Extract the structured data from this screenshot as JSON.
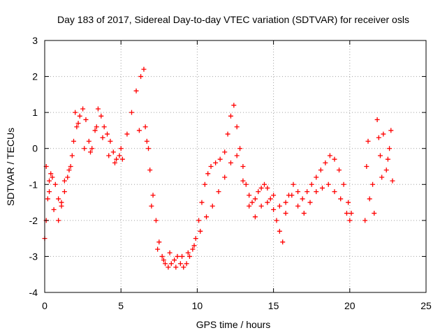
{
  "chart_data": {
    "type": "scatter",
    "title": "Day 183 of 2017, Sidereal Day-to-day VTEC variation (SDTVAR) for receiver osls",
    "xlabel": "GPS time / hours",
    "ylabel": "SDTVAR / TECUs",
    "xlim": [
      0,
      25
    ],
    "ylim": [
      -4,
      3
    ],
    "xticks": [
      0,
      5,
      10,
      15,
      20,
      25
    ],
    "yticks": [
      -4,
      -3,
      -2,
      -1,
      0,
      1,
      2,
      3
    ],
    "grid": true,
    "marker": "+",
    "color": "#ff0000",
    "series": [
      {
        "name": "trace-main",
        "points": [
          [
            0.0,
            -2.5
          ],
          [
            0.1,
            -2.0
          ],
          [
            0.2,
            -1.4
          ],
          [
            0.3,
            -0.9
          ],
          [
            0.4,
            -0.7
          ],
          [
            0.5,
            -0.8
          ],
          [
            0.7,
            -1.0
          ],
          [
            0.9,
            -1.4
          ],
          [
            1.1,
            -1.6
          ],
          [
            1.3,
            -1.2
          ],
          [
            1.5,
            -0.8
          ],
          [
            1.7,
            -0.5
          ],
          [
            1.9,
            0.2
          ],
          [
            2.1,
            0.6
          ],
          [
            2.3,
            0.9
          ],
          [
            2.5,
            1.1
          ],
          [
            2.7,
            0.8
          ],
          [
            2.9,
            0.2
          ],
          [
            3.1,
            0.0
          ],
          [
            3.3,
            0.5
          ],
          [
            3.5,
            1.1
          ],
          [
            3.7,
            0.9
          ],
          [
            3.9,
            0.6
          ],
          [
            4.1,
            0.4
          ],
          [
            4.3,
            0.2
          ],
          [
            4.5,
            -0.1
          ],
          [
            4.7,
            -0.3
          ],
          [
            4.9,
            -0.2
          ],
          [
            5.1,
            -0.3
          ],
          [
            5.4,
            0.4
          ],
          [
            5.7,
            1.0
          ],
          [
            6.0,
            1.6
          ],
          [
            6.3,
            2.0
          ],
          [
            6.5,
            2.2
          ],
          [
            6.6,
            0.6
          ],
          [
            6.8,
            0.0
          ],
          [
            6.9,
            -0.6
          ],
          [
            7.1,
            -1.3
          ],
          [
            7.3,
            -2.0
          ],
          [
            7.5,
            -2.6
          ],
          [
            7.7,
            -3.0
          ],
          [
            7.9,
            -3.2
          ],
          [
            8.1,
            -3.3
          ],
          [
            8.3,
            -3.2
          ],
          [
            8.5,
            -3.1
          ],
          [
            8.7,
            -3.0
          ],
          [
            8.9,
            -3.2
          ],
          [
            9.1,
            -3.3
          ],
          [
            9.3,
            -3.2
          ],
          [
            9.5,
            -3.0
          ],
          [
            9.7,
            -2.8
          ],
          [
            9.9,
            -2.5
          ],
          [
            10.1,
            -2.0
          ],
          [
            10.3,
            -1.5
          ],
          [
            10.5,
            -1.0
          ],
          [
            10.7,
            -0.7
          ],
          [
            10.9,
            -0.5
          ],
          [
            11.2,
            -0.4
          ],
          [
            11.5,
            -0.3
          ],
          [
            11.8,
            -0.1
          ],
          [
            12.0,
            0.4
          ],
          [
            12.2,
            0.9
          ],
          [
            12.4,
            1.2
          ],
          [
            12.6,
            0.6
          ],
          [
            12.8,
            0.0
          ],
          [
            13.0,
            -0.5
          ],
          [
            13.2,
            -1.0
          ],
          [
            13.4,
            -1.3
          ],
          [
            13.6,
            -1.5
          ],
          [
            13.8,
            -1.4
          ],
          [
            14.0,
            -1.2
          ],
          [
            14.2,
            -1.1
          ],
          [
            14.4,
            -1.0
          ],
          [
            14.6,
            -1.1
          ],
          [
            14.8,
            -1.4
          ],
          [
            15.0,
            -1.7
          ],
          [
            15.2,
            -2.0
          ],
          [
            15.4,
            -2.3
          ],
          [
            15.6,
            -2.6
          ],
          [
            15.8,
            -1.8
          ],
          [
            16.0,
            -1.3
          ],
          [
            16.3,
            -1.0
          ],
          [
            16.6,
            -1.2
          ],
          [
            16.9,
            -1.4
          ],
          [
            17.2,
            -1.2
          ],
          [
            17.5,
            -1.0
          ],
          [
            17.8,
            -0.8
          ],
          [
            18.1,
            -0.6
          ],
          [
            18.4,
            -0.4
          ],
          [
            18.7,
            -0.2
          ],
          [
            19.0,
            -0.3
          ],
          [
            19.3,
            -0.6
          ],
          [
            19.6,
            -1.0
          ],
          [
            19.9,
            -1.5
          ],
          [
            20.1,
            -1.8
          ],
          [
            21.0,
            -2.0
          ],
          [
            21.1,
            -0.5
          ],
          [
            21.2,
            0.2
          ],
          [
            21.5,
            -1.0
          ],
          [
            21.6,
            -1.8
          ],
          [
            21.8,
            0.8
          ],
          [
            22.0,
            -0.2
          ],
          [
            22.2,
            0.4
          ],
          [
            22.4,
            -0.6
          ],
          [
            22.6,
            0.0
          ],
          [
            22.8,
            -0.9
          ]
        ]
      },
      {
        "name": "trace-secondary",
        "points": [
          [
            0.1,
            -0.5
          ],
          [
            0.3,
            -1.2
          ],
          [
            0.6,
            -1.7
          ],
          [
            0.9,
            -2.0
          ],
          [
            1.1,
            -1.5
          ],
          [
            1.3,
            -0.9
          ],
          [
            1.6,
            -0.6
          ],
          [
            1.8,
            -0.2
          ],
          [
            2.0,
            1.0
          ],
          [
            2.2,
            0.7
          ],
          [
            2.6,
            0.0
          ],
          [
            3.0,
            -0.1
          ],
          [
            3.4,
            0.6
          ],
          [
            3.8,
            0.3
          ],
          [
            4.2,
            -0.2
          ],
          [
            4.6,
            -0.4
          ],
          [
            5.0,
            0.0
          ],
          [
            6.2,
            0.5
          ],
          [
            6.7,
            0.2
          ],
          [
            7.0,
            -1.6
          ],
          [
            7.4,
            -2.8
          ],
          [
            7.8,
            -3.1
          ],
          [
            8.2,
            -2.9
          ],
          [
            8.6,
            -3.3
          ],
          [
            9.0,
            -3.0
          ],
          [
            9.4,
            -2.9
          ],
          [
            9.8,
            -2.7
          ],
          [
            10.2,
            -2.3
          ],
          [
            10.6,
            -1.9
          ],
          [
            11.0,
            -1.6
          ],
          [
            11.4,
            -1.2
          ],
          [
            11.8,
            -0.8
          ],
          [
            12.2,
            -0.4
          ],
          [
            12.6,
            -0.2
          ],
          [
            13.0,
            -0.9
          ],
          [
            13.4,
            -1.6
          ],
          [
            13.8,
            -1.9
          ],
          [
            14.2,
            -1.6
          ],
          [
            14.6,
            -1.5
          ],
          [
            15.0,
            -1.3
          ],
          [
            15.4,
            -1.6
          ],
          [
            15.8,
            -1.5
          ],
          [
            16.2,
            -1.3
          ],
          [
            16.6,
            -1.6
          ],
          [
            17.0,
            -1.8
          ],
          [
            17.4,
            -1.5
          ],
          [
            17.8,
            -1.2
          ],
          [
            18.2,
            -1.1
          ],
          [
            18.6,
            -1.0
          ],
          [
            19.0,
            -1.2
          ],
          [
            19.4,
            -1.4
          ],
          [
            19.8,
            -1.8
          ],
          [
            20.0,
            -2.0
          ],
          [
            21.3,
            -1.4
          ],
          [
            21.9,
            0.3
          ],
          [
            22.1,
            -0.8
          ],
          [
            22.5,
            -0.3
          ],
          [
            22.7,
            0.5
          ]
        ]
      }
    ]
  }
}
